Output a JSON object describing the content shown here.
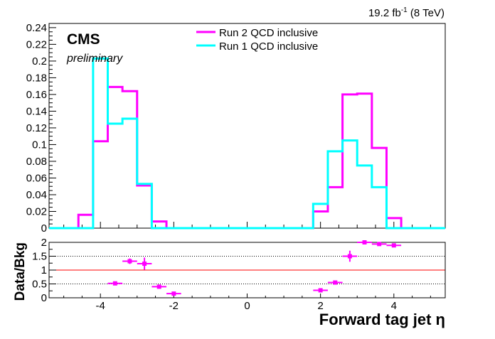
{
  "header": {
    "lumi_value": "19.2 fb",
    "lumi_exp": "-1",
    "lumi_energy": " (8 TeV)"
  },
  "labels": {
    "cms": "CMS",
    "preliminary": "preliminary"
  },
  "chart_data": [
    {
      "type": "histogram",
      "title": "",
      "xlim": [
        -5.4,
        5.4
      ],
      "ylim": [
        0,
        0.245
      ],
      "yticks": [
        0,
        0.02,
        0.04,
        0.06,
        0.08,
        0.1,
        0.12,
        0.14,
        0.16,
        0.18,
        0.2,
        0.22,
        0.24
      ],
      "ytick_labels": [
        "0",
        "0.02",
        "0.04",
        "0.06",
        "0.08",
        "0.1",
        "0.12",
        "0.14",
        "0.16",
        "0.18",
        "0.2",
        "0.22",
        "0.24"
      ],
      "legend": {
        "placement": "top-center"
      },
      "bin_edges": [
        -4.6,
        -4.2,
        -3.8,
        -3.4,
        -3.0,
        -2.6,
        -2.2,
        -1.8,
        -1.4,
        -1.0,
        -0.6,
        -0.2,
        0.2,
        0.6,
        1.0,
        1.4,
        1.8,
        2.2,
        2.6,
        3.0,
        3.4,
        3.8,
        4.2,
        4.6
      ],
      "series": [
        {
          "name": "Run 2 QCD inclusive",
          "color": "#ff00ff",
          "values": [
            0.016,
            0.104,
            0.169,
            0.164,
            0.051,
            0.008,
            0,
            0,
            0,
            0,
            0,
            0,
            0,
            0,
            0,
            0,
            0.02,
            0.049,
            0.16,
            0.161,
            0.096,
            0.012,
            0
          ]
        },
        {
          "name": "Run 1 QCD inclusive",
          "color": "#00ffff",
          "values": [
            0,
            0.203,
            0.125,
            0.131,
            0.053,
            0,
            0,
            0,
            0,
            0,
            0,
            0,
            0,
            0,
            0,
            0,
            0.029,
            0.092,
            0.105,
            0.075,
            0.049,
            0,
            0
          ]
        }
      ]
    },
    {
      "type": "scatter",
      "title": "",
      "ylabel": "Data/Bkg",
      "xlabel": "Forward tag jet η",
      "xlim": [
        -5.4,
        5.4
      ],
      "ylim": [
        0,
        2.0
      ],
      "xticks": [
        -4,
        -2,
        0,
        2,
        4
      ],
      "xtick_labels": [
        "-4",
        "-2",
        "0",
        "2",
        "4"
      ],
      "yticks": [
        0,
        0.5,
        1,
        1.5,
        2
      ],
      "ytick_labels": [
        "0",
        "0.5",
        "1",
        "1.5",
        "2"
      ],
      "reference_lines": [
        {
          "y": 1.0,
          "color": "#ff0000",
          "style": "solid"
        },
        {
          "y": 0.5,
          "color": "#000000",
          "style": "dotted"
        },
        {
          "y": 1.5,
          "color": "#000000",
          "style": "dotted"
        }
      ],
      "series": [
        {
          "name": "",
          "color": "#ff00ff",
          "points": [
            {
              "x": -3.6,
              "xerr": 0.2,
              "y": 0.52,
              "yerr": 0.03
            },
            {
              "x": -3.2,
              "xerr": 0.2,
              "y": 1.32,
              "yerr": 0.1
            },
            {
              "x": -2.8,
              "xerr": 0.2,
              "y": 1.23,
              "yerr": 0.22
            },
            {
              "x": -2.4,
              "xerr": 0.2,
              "y": 0.4,
              "yerr": 0.04
            },
            {
              "x": -2.0,
              "xerr": 0.2,
              "y": 0.15,
              "yerr": 0.02
            },
            {
              "x": 2.0,
              "xerr": 0.2,
              "y": 0.27,
              "yerr": 0.06
            },
            {
              "x": 2.4,
              "xerr": 0.2,
              "y": 0.55,
              "yerr": 0.04
            },
            {
              "x": 2.8,
              "xerr": 0.2,
              "y": 1.5,
              "yerr": 0.2
            },
            {
              "x": 3.2,
              "xerr": 0.2,
              "y": 2.0,
              "yerr": 0.02
            },
            {
              "x": 3.6,
              "xerr": 0.2,
              "y": 1.94,
              "yerr": 0.05
            },
            {
              "x": 4.0,
              "xerr": 0.2,
              "y": 1.89,
              "yerr": 0.03
            }
          ]
        }
      ]
    }
  ]
}
